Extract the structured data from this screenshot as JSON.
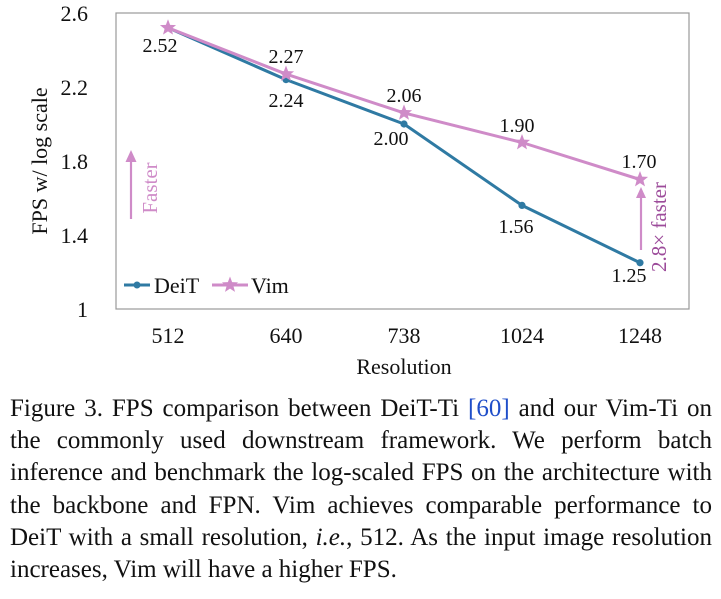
{
  "chart_data": {
    "type": "line",
    "ylabel": "FPS w/ log scale",
    "xlabel": "Resolution",
    "categories": [
      "512",
      "640",
      "738",
      "1024",
      "1248"
    ],
    "ylim": [
      1,
      2.6
    ],
    "yticks": [
      1,
      1.4,
      1.8,
      2.2,
      2.6
    ],
    "ytick_labels": [
      "1",
      "1.4",
      "1.8",
      "2.2",
      "2.6"
    ],
    "grid": false,
    "legend_position": "bottom-left",
    "series": [
      {
        "name": "DeiT",
        "color": "#2f7aa3",
        "marker": "circle",
        "values": [
          2.52,
          2.24,
          2.0,
          1.56,
          1.25
        ],
        "labels": [
          "2.52",
          "2.24",
          "2.00",
          "1.56",
          "1.25"
        ]
      },
      {
        "name": "Vim",
        "color": "#cf8bc8",
        "marker": "star",
        "values": [
          2.52,
          2.27,
          2.06,
          1.9,
          1.7
        ],
        "labels": [
          "2.52",
          "2.27",
          "2.06",
          "1.90",
          "1.70"
        ]
      }
    ],
    "annotations": {
      "faster_label": "Faster",
      "speedup_label": "2.8× faster"
    }
  },
  "caption": {
    "prefix": "Figure 3.  FPS comparison between DeiT-Ti ",
    "ref_open": "[",
    "ref_num": "60",
    "ref_close": "]",
    "middle": " and our Vim-Ti on the commonly used downstream framework.  We perform batch inference and benchmark the log-scaled FPS on the architecture with the backbone and FPN. Vim achieves comparable performance to DeiT with a small resolution, ",
    "ie": "i.e.",
    "suffix": ", 512.  As the input image resolution increases, Vim will have a higher FPS."
  }
}
